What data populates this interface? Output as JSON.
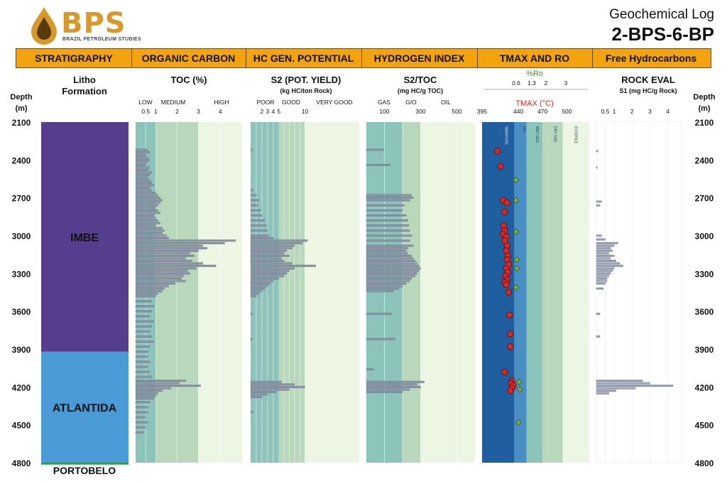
{
  "logo": {
    "brand": "BPS",
    "tagline": "BRAZIL PETROLEUM STUDIES",
    "icon": "oil-drop-icon",
    "color": "#d79a2a"
  },
  "title": {
    "line1": "Geochemical Log",
    "line2": "2-BPS-6-BP"
  },
  "header_bar": [
    "STRATIGRAPHY",
    "ORGANIC CARBON",
    "HC GEN. POTENTIAL",
    "HYDROGEN INDEX",
    "TMAX AND RO",
    "Free Hydrocarbons"
  ],
  "colors": {
    "header": "#f2a30f",
    "imbe": "#563d8e",
    "atlantida": "#4a9ad6",
    "portobelo": "#2e9a4a",
    "bar": "#8a94a6",
    "tmax_marker": "#d62a2a",
    "ro_marker": "#6a9a40"
  },
  "chart_data": {
    "depth": {
      "label": "Depth",
      "unit": "(m)",
      "range": [
        2100,
        4800
      ],
      "ticks": [
        2100,
        2400,
        2700,
        3000,
        3300,
        3600,
        3900,
        4200,
        4500,
        4800
      ]
    },
    "stratigraphy": {
      "header": [
        "Litho",
        "Formation"
      ],
      "formations": [
        {
          "name": "IMBE",
          "top": 2100,
          "base": 3920
        },
        {
          "name": "ATLANTIDA",
          "top": 3920,
          "base": 4800
        },
        {
          "name": "PORTOBELO",
          "top": 4800,
          "base": 4815
        }
      ]
    },
    "toc": {
      "title": "TOC (%)",
      "zones": [
        "LOW",
        "MEDIUM",
        "HIGH"
      ],
      "ticks": [
        "0.5",
        "1",
        "2",
        "3",
        "4"
      ],
      "samples": [
        [
          2320,
          0.6
        ],
        [
          2340,
          0.7
        ],
        [
          2360,
          0.5
        ],
        [
          2380,
          0.6
        ],
        [
          2400,
          0.7
        ],
        [
          2420,
          0.6
        ],
        [
          2440,
          0.5
        ],
        [
          2460,
          0.7
        ],
        [
          2480,
          0.6
        ],
        [
          2500,
          0.8
        ],
        [
          2520,
          0.7
        ],
        [
          2540,
          0.6
        ],
        [
          2560,
          0.7
        ],
        [
          2580,
          0.8
        ],
        [
          2600,
          0.9
        ],
        [
          2620,
          0.7
        ],
        [
          2640,
          0.8
        ],
        [
          2660,
          1.0
        ],
        [
          2680,
          1.1
        ],
        [
          2700,
          1.2
        ],
        [
          2720,
          1.3
        ],
        [
          2740,
          1.2
        ],
        [
          2760,
          1.1
        ],
        [
          2780,
          1.0
        ],
        [
          2800,
          1.1
        ],
        [
          2820,
          1.2
        ],
        [
          2840,
          0.9
        ],
        [
          2860,
          1.0
        ],
        [
          2880,
          1.1
        ],
        [
          2900,
          1.2
        ],
        [
          2920,
          1.0
        ],
        [
          2940,
          1.3
        ],
        [
          2960,
          1.4
        ],
        [
          2980,
          1.3
        ],
        [
          3000,
          1.5
        ],
        [
          3020,
          1.6
        ],
        [
          3040,
          4.7
        ],
        [
          3060,
          4.2
        ],
        [
          3080,
          3.2
        ],
        [
          3100,
          3.4
        ],
        [
          3120,
          3.0
        ],
        [
          3140,
          2.6
        ],
        [
          3160,
          2.8
        ],
        [
          3180,
          2.4
        ],
        [
          3200,
          2.7
        ],
        [
          3220,
          3.2
        ],
        [
          3240,
          3.8
        ],
        [
          3260,
          2.9
        ],
        [
          3280,
          2.5
        ],
        [
          3300,
          2.6
        ],
        [
          3320,
          2.3
        ],
        [
          3340,
          2.2
        ],
        [
          3360,
          2.4
        ],
        [
          3380,
          1.9
        ],
        [
          3400,
          1.6
        ],
        [
          3420,
          1.4
        ],
        [
          3440,
          1.3
        ],
        [
          3460,
          1.1
        ],
        [
          3480,
          1.0
        ],
        [
          3520,
          0.8
        ],
        [
          3560,
          0.9
        ],
        [
          3600,
          0.8
        ],
        [
          3640,
          0.7
        ],
        [
          3680,
          0.9
        ],
        [
          3720,
          0.8
        ],
        [
          3760,
          0.7
        ],
        [
          3800,
          0.8
        ],
        [
          3840,
          0.9
        ],
        [
          3880,
          0.7
        ],
        [
          3920,
          0.6
        ],
        [
          3960,
          0.6
        ],
        [
          4000,
          0.7
        ],
        [
          4040,
          0.6
        ],
        [
          4080,
          0.7
        ],
        [
          4120,
          0.8
        ],
        [
          4150,
          2.4
        ],
        [
          4170,
          2.1
        ],
        [
          4190,
          3.1
        ],
        [
          4210,
          1.7
        ],
        [
          4230,
          1.3
        ],
        [
          4250,
          1.1
        ],
        [
          4270,
          1.0
        ],
        [
          4290,
          0.9
        ],
        [
          4320,
          0.7
        ],
        [
          4360,
          0.6
        ],
        [
          4400,
          0.6
        ],
        [
          4440,
          0.5
        ],
        [
          4480,
          0.6
        ],
        [
          4520,
          0.5
        ],
        [
          4560,
          0.4
        ]
      ]
    },
    "s2": {
      "title": "S2 (POT. YIELD)",
      "unit": "(kg HC/ton Rock)",
      "zones": [
        "POOR",
        "GOOD",
        "VERY GOOD"
      ],
      "ticks": [
        "2",
        "3",
        "4",
        "5",
        "10"
      ],
      "samples": [
        [
          2320,
          0.3
        ],
        [
          2640,
          0.5
        ],
        [
          2680,
          1.0
        ],
        [
          2720,
          1.5
        ],
        [
          2760,
          1.2
        ],
        [
          2800,
          1.8
        ],
        [
          2840,
          2.0
        ],
        [
          2880,
          2.5
        ],
        [
          2920,
          2.8
        ],
        [
          2960,
          3.0
        ],
        [
          3000,
          3.2
        ],
        [
          3020,
          4.0
        ],
        [
          3040,
          10.5
        ],
        [
          3060,
          9.5
        ],
        [
          3080,
          8.0
        ],
        [
          3100,
          7.5
        ],
        [
          3120,
          6.5
        ],
        [
          3140,
          6.0
        ],
        [
          3160,
          7.0
        ],
        [
          3180,
          5.5
        ],
        [
          3200,
          6.0
        ],
        [
          3220,
          7.5
        ],
        [
          3240,
          12.0
        ],
        [
          3260,
          8.0
        ],
        [
          3280,
          7.0
        ],
        [
          3300,
          6.5
        ],
        [
          3320,
          6.0
        ],
        [
          3340,
          5.0
        ],
        [
          3360,
          4.0
        ],
        [
          3380,
          3.5
        ],
        [
          3400,
          3.0
        ],
        [
          3420,
          2.5
        ],
        [
          3440,
          2.0
        ],
        [
          3460,
          1.5
        ],
        [
          3480,
          1.0
        ],
        [
          3620,
          0.3
        ],
        [
          3820,
          0.3
        ],
        [
          4160,
          5.5
        ],
        [
          4180,
          8.0
        ],
        [
          4200,
          10.0
        ],
        [
          4220,
          7.0
        ],
        [
          4240,
          4.5
        ],
        [
          4260,
          3.0
        ],
        [
          4280,
          2.0
        ],
        [
          4400,
          0.4
        ]
      ]
    },
    "hi": {
      "title": "S2/TOC",
      "unit": "(mg HC/g TOC)",
      "zones": [
        "GAS",
        "G/O",
        "OIL"
      ],
      "ticks": [
        "100",
        "300",
        "500"
      ],
      "samples": [
        [
          2320,
          95
        ],
        [
          2440,
          130
        ],
        [
          2680,
          250
        ],
        [
          2700,
          260
        ],
        [
          2720,
          240
        ],
        [
          2760,
          210
        ],
        [
          2800,
          200
        ],
        [
          2840,
          220
        ],
        [
          2880,
          230
        ],
        [
          2920,
          235
        ],
        [
          2960,
          240
        ],
        [
          3000,
          250
        ],
        [
          3040,
          240
        ],
        [
          3080,
          260
        ],
        [
          3100,
          230
        ],
        [
          3120,
          220
        ],
        [
          3140,
          230
        ],
        [
          3160,
          250
        ],
        [
          3180,
          260
        ],
        [
          3200,
          270
        ],
        [
          3220,
          280
        ],
        [
          3240,
          290
        ],
        [
          3260,
          300
        ],
        [
          3280,
          290
        ],
        [
          3300,
          280
        ],
        [
          3320,
          270
        ],
        [
          3340,
          250
        ],
        [
          3360,
          240
        ],
        [
          3380,
          220
        ],
        [
          3400,
          200
        ],
        [
          3420,
          180
        ],
        [
          3440,
          150
        ],
        [
          3620,
          140
        ],
        [
          3820,
          160
        ],
        [
          4060,
          40
        ],
        [
          4160,
          320
        ],
        [
          4180,
          280
        ],
        [
          4200,
          300
        ],
        [
          4220,
          240
        ],
        [
          4240,
          200
        ]
      ]
    },
    "tmax": {
      "title": "TMAX (°C)",
      "ro_title": "%Ro",
      "ro_ticks": [
        "0.6",
        "1.3",
        "2",
        "3"
      ],
      "tmax_ticks": [
        "395",
        "440",
        "470",
        "500"
      ],
      "zones": [
        "IMMATURE",
        "OIL",
        "WET GAS",
        "DRY GAS",
        "ESTERILE"
      ],
      "tmax_samples": [
        [
          2330,
          414
        ],
        [
          2450,
          418
        ],
        [
          2720,
          421
        ],
        [
          2740,
          426
        ],
        [
          2810,
          423
        ],
        [
          2920,
          422
        ],
        [
          2960,
          423
        ],
        [
          2990,
          421
        ],
        [
          3010,
          425
        ],
        [
          3040,
          423
        ],
        [
          3080,
          426
        ],
        [
          3120,
          425
        ],
        [
          3160,
          427
        ],
        [
          3190,
          426
        ],
        [
          3230,
          428
        ],
        [
          3260,
          425
        ],
        [
          3290,
          427
        ],
        [
          3320,
          424
        ],
        [
          3350,
          426
        ],
        [
          3370,
          423
        ],
        [
          3390,
          425
        ],
        [
          3450,
          428
        ],
        [
          3630,
          429
        ],
        [
          3780,
          430
        ],
        [
          3880,
          430
        ],
        [
          4080,
          423
        ],
        [
          4150,
          432
        ],
        [
          4170,
          431
        ],
        [
          4190,
          434
        ],
        [
          4210,
          432
        ],
        [
          4230,
          430
        ]
      ],
      "ro_samples": [
        [
          2560,
          437
        ],
        [
          2720,
          437
        ],
        [
          2970,
          437
        ],
        [
          3190,
          438
        ],
        [
          3260,
          438
        ],
        [
          3410,
          437
        ],
        [
          4160,
          441
        ],
        [
          4220,
          442
        ],
        [
          4480,
          440
        ]
      ]
    },
    "s1": {
      "title": "ROCK EVAL",
      "subtitle": "S1 (mg HC/g Rock)",
      "ticks": [
        "0.5",
        "1",
        "2",
        "3",
        "4"
      ],
      "samples": [
        [
          2330,
          0.1
        ],
        [
          2460,
          0.05
        ],
        [
          2730,
          0.3
        ],
        [
          2760,
          0.2
        ],
        [
          3000,
          0.3
        ],
        [
          3030,
          0.5
        ],
        [
          3060,
          1.2
        ],
        [
          3080,
          1.0
        ],
        [
          3100,
          0.8
        ],
        [
          3120,
          0.9
        ],
        [
          3140,
          0.7
        ],
        [
          3160,
          1.0
        ],
        [
          3180,
          0.8
        ],
        [
          3200,
          1.1
        ],
        [
          3220,
          1.3
        ],
        [
          3240,
          1.5
        ],
        [
          3260,
          1.0
        ],
        [
          3280,
          0.9
        ],
        [
          3300,
          0.8
        ],
        [
          3320,
          0.7
        ],
        [
          3340,
          0.6
        ],
        [
          3360,
          0.6
        ],
        [
          3380,
          0.5
        ],
        [
          3420,
          0.4
        ],
        [
          3620,
          0.2
        ],
        [
          3800,
          0.2
        ],
        [
          4150,
          2.6
        ],
        [
          4170,
          3.0
        ],
        [
          4190,
          4.3
        ],
        [
          4210,
          2.2
        ],
        [
          4230,
          1.1
        ],
        [
          4250,
          0.7
        ]
      ]
    }
  }
}
